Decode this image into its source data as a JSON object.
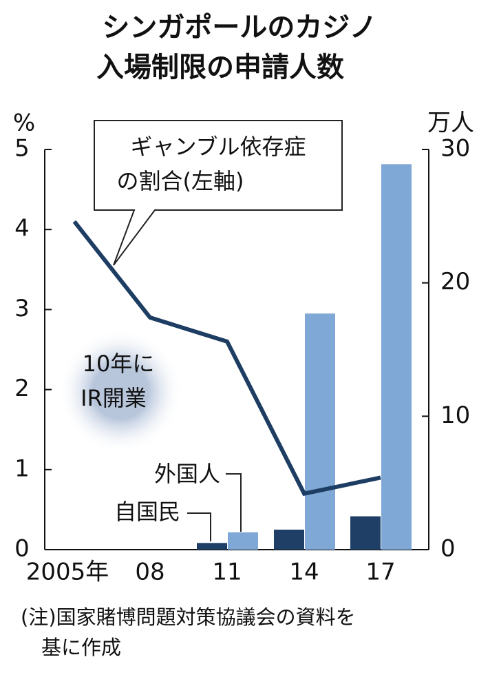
{
  "chart_data": {
    "type": "combo",
    "title": [
      "シンガポールのカジノ",
      "入場制限の申請人数"
    ],
    "y_label": "%",
    "y2_label": "万人",
    "categories": [
      "2005年",
      "08",
      "11",
      "14",
      "17"
    ],
    "series": [
      {
        "name": "ギャンブル依存症の割合(左軸)",
        "type": "line",
        "axis": "y",
        "color": "#1d3d63",
        "values": [
          4.1,
          2.9,
          2.6,
          0.7,
          0.9
        ]
      },
      {
        "name": "自国民",
        "type": "bar",
        "axis": "y2",
        "color": "#1f3f66",
        "values": [
          null,
          null,
          0.5,
          1.5,
          2.5
        ]
      },
      {
        "name": "外国人",
        "type": "bar",
        "axis": "y2",
        "color": "#7fa8d6",
        "values": [
          null,
          null,
          1.3,
          17.7,
          28.9
        ]
      }
    ],
    "callout": [
      "ギャンブル依存症",
      "の割合(左軸)"
    ],
    "annotation": [
      "10年に",
      "IR開業"
    ],
    "ylim": [
      0,
      5
    ],
    "yticks": [
      0,
      1,
      2,
      3,
      4,
      5
    ],
    "y2lim": [
      0,
      30
    ],
    "y2ticks": [
      0,
      10,
      20,
      30
    ],
    "note": [
      "(注)国家賭博問題対策協議会の資料を",
      "基に作成"
    ]
  }
}
